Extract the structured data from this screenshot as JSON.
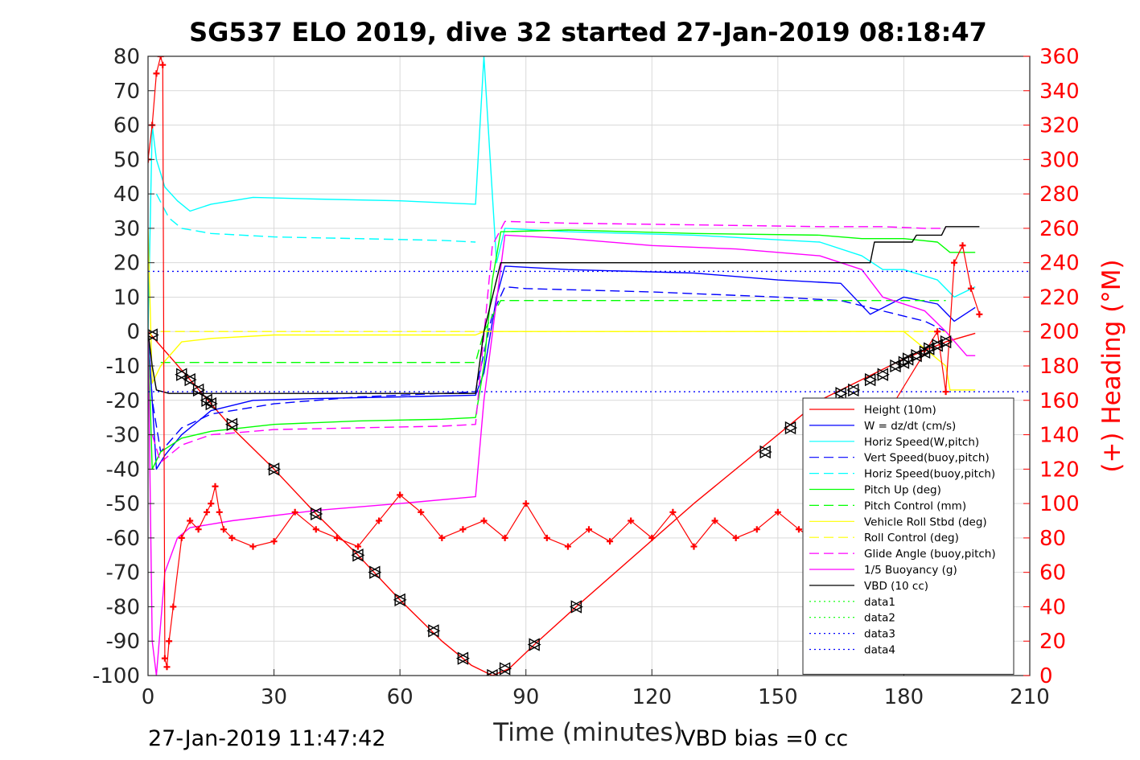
{
  "chart_data": {
    "type": "line",
    "title": "SG537 ELO 2019, dive 32 started 27-Jan-2019 08:18:47",
    "xlabel": "Time (minutes)",
    "ylabel": "",
    "ylabel_right": "(+) Heading (°M)",
    "xlim": [
      0,
      210
    ],
    "ylim": [
      -100,
      80
    ],
    "ylim_right": [
      0,
      360
    ],
    "xticks": [
      "0",
      "30",
      "60",
      "90",
      "120",
      "150",
      "180",
      "210"
    ],
    "yticks": [
      "80",
      "70",
      "60",
      "50",
      "40",
      "30",
      "20",
      "10",
      "0",
      "-10",
      "-20",
      "-30",
      "-40",
      "-50",
      "-60",
      "-70",
      "-80",
      "-90",
      "-100"
    ],
    "yticks_right": [
      "360",
      "340",
      "320",
      "300",
      "280",
      "260",
      "240",
      "220",
      "200",
      "180",
      "160",
      "140",
      "120",
      "100",
      "80",
      "60",
      "40",
      "20",
      "0"
    ],
    "grid": true,
    "legend_position": "lower-right",
    "footer_left": "27-Jan-2019 11:47:42",
    "footer_right": "VBD bias =0 cc",
    "series": [
      {
        "name": "Height (10m)",
        "color": "#ff0000",
        "style": "solid",
        "x": [
          0,
          20,
          30,
          40,
          50,
          60,
          70,
          77,
          82,
          86,
          92,
          102,
          130,
          160,
          180,
          190,
          197
        ],
        "y": [
          0,
          -28,
          -40,
          -53,
          -65,
          -78,
          -90,
          -97,
          -100,
          -98,
          -91,
          -80,
          -50,
          -20,
          -8,
          -3,
          -0.5
        ]
      },
      {
        "name": "W = dz/dt (cm/s)",
        "color": "#0000ff",
        "style": "solid",
        "x": [
          0,
          1,
          2,
          4,
          8,
          15,
          25,
          40,
          60,
          78,
          80,
          83,
          85,
          100,
          130,
          150,
          165,
          172,
          180,
          188,
          192,
          197
        ],
        "y": [
          0,
          -20,
          -40,
          -36,
          -30,
          -23,
          -20,
          -19.5,
          -19,
          -18.5,
          -12,
          10,
          19,
          18,
          17,
          15,
          14,
          5,
          10,
          8,
          3,
          7
        ]
      },
      {
        "name": "Horiz Speed(W,pitch)",
        "color": "#00ffff",
        "style": "solid",
        "x": [
          0,
          1,
          2,
          4,
          7,
          10,
          15,
          25,
          40,
          60,
          78,
          80,
          81,
          83,
          85,
          100,
          130,
          160,
          170,
          175,
          180,
          188,
          192,
          197
        ],
        "y": [
          0,
          60,
          50,
          42,
          38,
          35,
          37,
          39,
          38.5,
          38,
          37,
          80,
          60,
          20,
          30,
          29,
          28,
          26,
          22,
          18,
          18,
          15,
          10,
          13
        ]
      },
      {
        "name": "Vert Speed(buoy,pitch)",
        "color": "#0000ff",
        "style": "dashed",
        "x": [
          0,
          1,
          3,
          8,
          15,
          30,
          50,
          70,
          78,
          82,
          85,
          90,
          120,
          150,
          165,
          175,
          185,
          190
        ],
        "y": [
          0,
          -20,
          -35,
          -28,
          -24,
          -21,
          -19,
          -18,
          -17.5,
          5,
          13,
          12.5,
          11.5,
          10,
          9,
          6,
          3,
          0
        ]
      },
      {
        "name": "Horiz Speed(buoy,pitch)",
        "color": "#00ffff",
        "style": "dashed",
        "x": [
          2,
          5,
          8,
          15,
          30,
          50,
          70,
          78
        ],
        "y": [
          40,
          33,
          30,
          28.5,
          27.5,
          27,
          26.5,
          26
        ]
      },
      {
        "name": "Pitch Up (deg)",
        "color": "#00ff00",
        "style": "solid",
        "x": [
          0,
          1,
          3,
          8,
          15,
          30,
          50,
          70,
          78,
          80,
          82,
          84,
          100,
          130,
          160,
          170,
          180,
          188,
          191,
          197
        ],
        "y": [
          0,
          -40,
          -35,
          -31,
          -29,
          -27,
          -26,
          -25.5,
          -25,
          -10,
          15,
          29,
          29.5,
          28.5,
          28,
          27,
          27,
          26,
          23,
          23
        ]
      },
      {
        "name": "Pitch Control (mm)",
        "color": "#00ff00",
        "style": "dashed",
        "x": [
          3,
          78,
          80,
          84,
          190
        ],
        "y": [
          -9,
          -9,
          0,
          9,
          9
        ]
      },
      {
        "name": "Vehicle Roll Stbd (deg)",
        "color": "#ffff00",
        "style": "solid",
        "x": [
          0,
          1,
          3,
          8,
          15,
          30,
          50,
          70,
          78,
          80,
          84,
          100,
          130,
          160,
          180,
          190,
          191,
          197
        ],
        "y": [
          30,
          -15,
          -10,
          -3,
          -2,
          -1,
          -1,
          -1,
          -1,
          0,
          0,
          0,
          0,
          0,
          0,
          -10,
          -17,
          -17
        ]
      },
      {
        "name": "Roll Control (deg)",
        "color": "#ffff00",
        "style": "dashed",
        "x": [
          3,
          78,
          80,
          84,
          190
        ],
        "y": [
          0,
          0,
          0,
          0,
          0
        ]
      },
      {
        "name": "Glide Angle (buoy,pitch)",
        "color": "#ff00ff",
        "style": "dashed",
        "x": [
          1,
          3,
          8,
          15,
          30,
          50,
          70,
          78,
          82,
          85,
          100,
          130,
          160,
          175,
          185,
          190
        ],
        "y": [
          -30,
          -38,
          -33,
          -30,
          -28.5,
          -28,
          -27.5,
          -27,
          25,
          32,
          31.5,
          31,
          30.5,
          30.5,
          30,
          30
        ]
      },
      {
        "name": "1/5 Buoyancy (g)",
        "color": "#ff00ff",
        "style": "solid",
        "x": [
          0,
          1,
          2,
          4,
          7,
          10,
          20,
          40,
          60,
          78,
          80,
          85,
          100,
          120,
          140,
          160,
          170,
          175,
          185,
          190,
          195,
          197
        ],
        "y": [
          0,
          -90,
          -100,
          -70,
          -60,
          -57,
          -55,
          -52,
          -50,
          -48,
          -20,
          28,
          27,
          25,
          24,
          22,
          18,
          10,
          6,
          0,
          -7,
          -7
        ]
      },
      {
        "name": "VBD (10 cc)",
        "color": "#000000",
        "style": "solid",
        "x": [
          0,
          1,
          2,
          5,
          10,
          78,
          80,
          84,
          172,
          173,
          182,
          183,
          189,
          190,
          198
        ],
        "y": [
          0,
          -10,
          -17,
          -18,
          -18,
          -18,
          0,
          20,
          20,
          26,
          26,
          28,
          28,
          30.5,
          30.5
        ]
      },
      {
        "name": "data1",
        "color": "#00ff00",
        "style": "dotted",
        "x": [],
        "y": []
      },
      {
        "name": "data2",
        "color": "#00ff00",
        "style": "dotted",
        "x": [],
        "y": []
      },
      {
        "name": "data3",
        "color": "#0000ff",
        "style": "dotted",
        "x": [
          0,
          210
        ],
        "y": [
          17.5,
          17.5
        ]
      },
      {
        "name": "data4",
        "color": "#0000ff",
        "style": "dotted",
        "x": [
          0,
          210
        ],
        "y": [
          -17.5,
          -17.5
        ]
      }
    ],
    "heading_series": {
      "name": "",
      "color": "#ff0000",
      "axis": "right",
      "marker": "plus",
      "x": [
        0,
        1,
        2,
        3,
        3.5,
        4,
        4.5,
        5,
        6,
        8,
        10,
        12,
        14,
        15,
        16,
        17,
        18,
        20,
        25,
        30,
        35,
        40,
        45,
        50,
        55,
        60,
        65,
        70,
        75,
        80,
        85,
        90,
        95,
        100,
        105,
        110,
        115,
        120,
        125,
        130,
        135,
        140,
        145,
        150,
        155,
        158,
        188,
        190,
        192,
        194,
        196,
        198
      ],
      "y": [
        300,
        320,
        350,
        360,
        355,
        10,
        5,
        20,
        40,
        80,
        90,
        85,
        95,
        100,
        110,
        95,
        85,
        80,
        75,
        78,
        95,
        85,
        80,
        75,
        90,
        105,
        95,
        80,
        85,
        90,
        80,
        100,
        80,
        75,
        85,
        78,
        90,
        80,
        95,
        75,
        90,
        80,
        85,
        95,
        85,
        80,
        200,
        165,
        240,
        250,
        225,
        210
      ]
    },
    "dive_markers": {
      "x": [
        1,
        8,
        10,
        12,
        14,
        15,
        20,
        30,
        40,
        50,
        54,
        60,
        68,
        75,
        82,
        85,
        92,
        102,
        147,
        153,
        165,
        168,
        172,
        175,
        178,
        180,
        181,
        183,
        185,
        186,
        188,
        190
      ],
      "y": [
        -1,
        -12.5,
        -14,
        -17,
        -20,
        -21,
        -27,
        -40,
        -53,
        -65,
        -70,
        -78,
        -87,
        -95,
        -100,
        -98,
        -91,
        -80,
        -35,
        -28,
        -18,
        -17,
        -14,
        -12.5,
        -10,
        -9,
        -8,
        -7,
        -6,
        -5,
        -4,
        -3
      ]
    }
  }
}
